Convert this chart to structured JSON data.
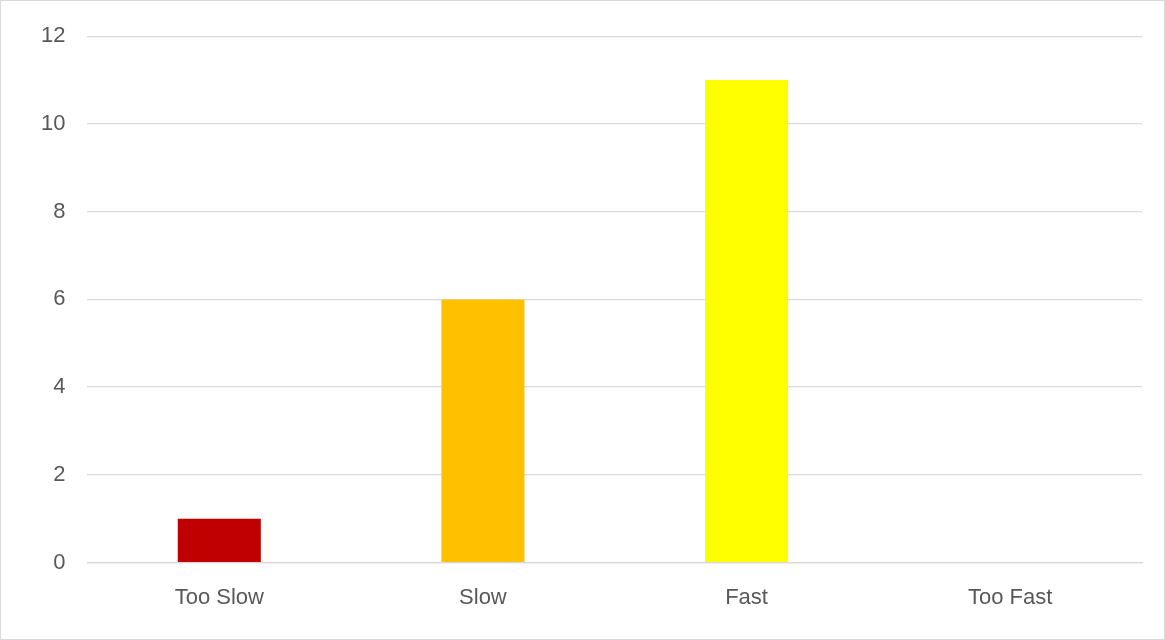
{
  "chart_data": {
    "type": "bar",
    "categories": [
      "Too Slow",
      "Slow",
      "Fast",
      "Too Fast"
    ],
    "values": [
      1,
      6,
      11,
      0
    ],
    "colors": [
      "#c00000",
      "#ffc000",
      "#ffff00",
      "#70ad47"
    ],
    "ylim": [
      0,
      12
    ],
    "yticks": [
      0,
      2,
      4,
      6,
      8,
      10,
      12
    ],
    "grid": "y"
  }
}
